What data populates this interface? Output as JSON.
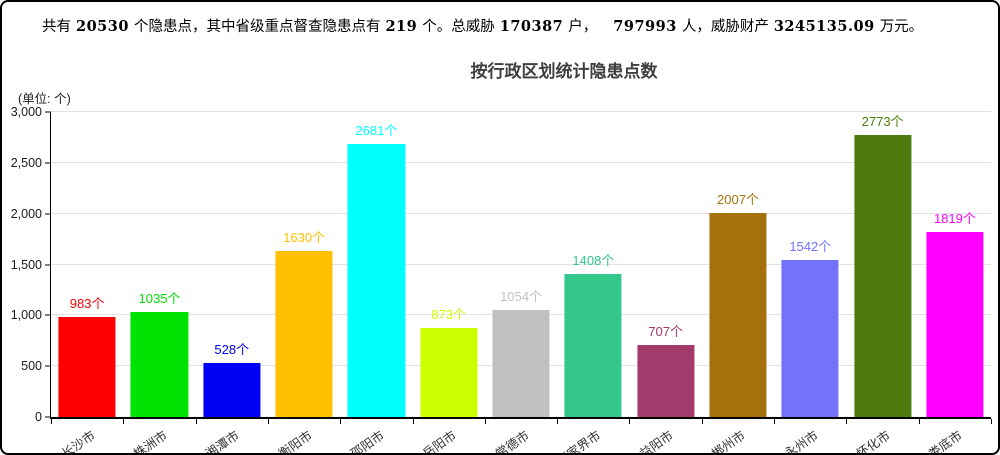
{
  "summary": {
    "part1": "共有",
    "num1": "20530",
    "part2": "个隐患点，其中省级重点督查隐患点有",
    "num2": "219",
    "part3": "个。总威胁",
    "num3": "170387",
    "part4": "户，",
    "num4": "797993",
    "part5": "人，威胁财产",
    "num5": "3245135.09",
    "part6": "万元。"
  },
  "chart_data": {
    "type": "bar",
    "title": "按行政区划统计隐患点数",
    "unit_label": "(单位: 个)",
    "categories": [
      "长沙市",
      "株洲市",
      "湘潭市",
      "衡阳市",
      "邵阳市",
      "岳阳市",
      "常德市",
      "张家界市",
      "益阳市",
      "郴州市",
      "永州市",
      "怀化市",
      "娄底市"
    ],
    "values": [
      983,
      1035,
      528,
      1630,
      2681,
      873,
      1054,
      1408,
      707,
      2007,
      1542,
      2773,
      1819
    ],
    "bar_colors": [
      "#ff0000",
      "#00e300",
      "#0000f5",
      "#ffc000",
      "#00ffff",
      "#ccff00",
      "#c0c0c0",
      "#33c78c",
      "#a23a6b",
      "#a67108",
      "#7272fa",
      "#4c7a0c",
      "#ff00ff"
    ],
    "value_suffix": "个",
    "xlabel": "",
    "ylabel": "",
    "ylim": [
      0,
      3000
    ],
    "ytick_step": 500,
    "ytick_labels": [
      "0",
      "500",
      "1,000",
      "1,500",
      "2,000",
      "2,500",
      "3,000"
    ],
    "grid": true,
    "legend": false,
    "x_label_rotation_deg": -35
  }
}
